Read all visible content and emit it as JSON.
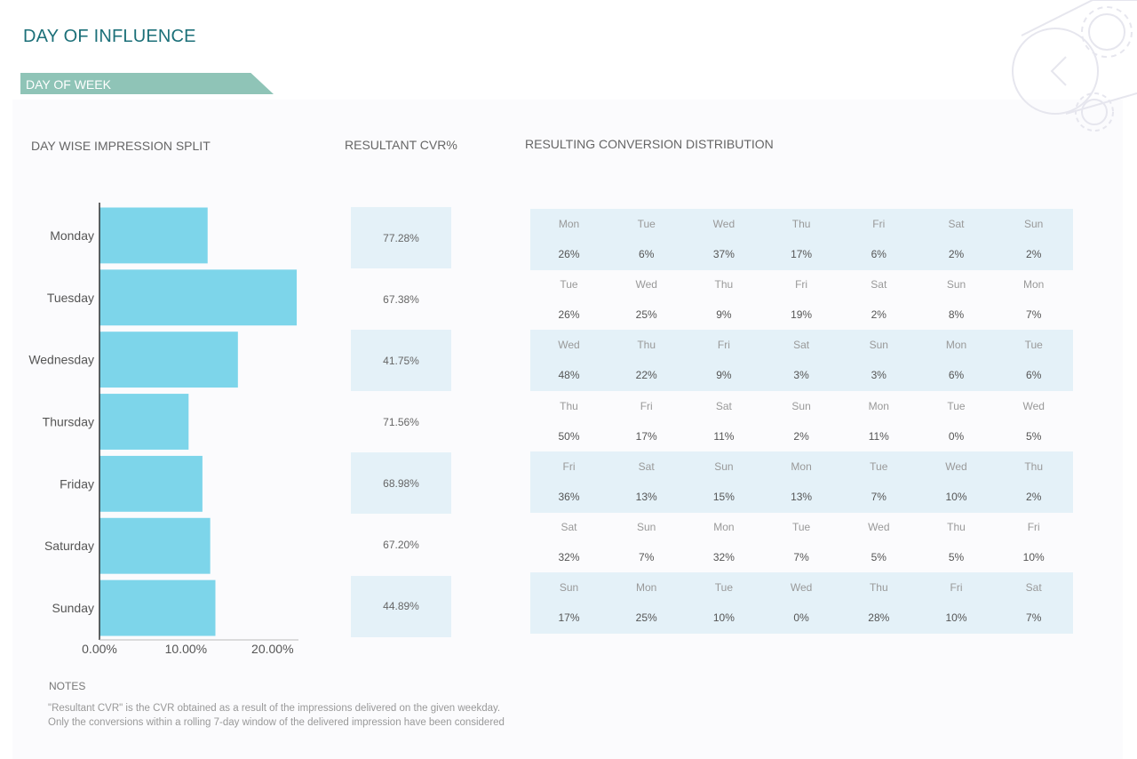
{
  "page": {
    "title": "DAY OF INFLUENCE",
    "banner": "DAY OF WEEK"
  },
  "sections": {
    "impression_split": "DAY WISE IMPRESSION SPLIT",
    "resultant_cvr": "RESULTANT CVR%",
    "conversion_distribution": "RESULTING CONVERSION DISTRIBUTION"
  },
  "colors": {
    "bar": "#7dd5ea",
    "title": "#1c7079",
    "banner": "#8fc4b7",
    "row_shade": "#e4f1f8"
  },
  "chart_data": {
    "type": "bar",
    "orientation": "horizontal",
    "title": "DAY WISE IMPRESSION SPLIT",
    "categories": [
      "Monday",
      "Tuesday",
      "Wednesday",
      "Thursday",
      "Friday",
      "Saturday",
      "Sunday"
    ],
    "values": [
      12.5,
      22.8,
      16.0,
      10.3,
      11.9,
      12.8,
      13.4
    ],
    "unit": "%",
    "xlim": [
      0,
      23
    ],
    "xticks": [
      0,
      10,
      20
    ],
    "xtick_labels": [
      "0.00%",
      "10.00%",
      "20.00%"
    ],
    "xlabel": "",
    "ylabel": "",
    "grid": false,
    "legend": "none"
  },
  "resultant_cvr": [
    {
      "day": "Monday",
      "value": "77.28%"
    },
    {
      "day": "Tuesday",
      "value": "67.38%"
    },
    {
      "day": "Wednesday",
      "value": "41.75%"
    },
    {
      "day": "Thursday",
      "value": "71.56%"
    },
    {
      "day": "Friday",
      "value": "68.98%"
    },
    {
      "day": "Saturday",
      "value": "67.20%"
    },
    {
      "day": "Sunday",
      "value": "44.89%"
    }
  ],
  "conversion_distribution": [
    {
      "days": [
        "Mon",
        "Tue",
        "Wed",
        "Thu",
        "Fri",
        "Sat",
        "Sun"
      ],
      "values": [
        "26%",
        "6%",
        "37%",
        "17%",
        "6%",
        "2%",
        "2%"
      ]
    },
    {
      "days": [
        "Tue",
        "Wed",
        "Thu",
        "Fri",
        "Sat",
        "Sun",
        "Mon"
      ],
      "values": [
        "26%",
        "25%",
        "9%",
        "19%",
        "2%",
        "8%",
        "7%"
      ]
    },
    {
      "days": [
        "Wed",
        "Thu",
        "Fri",
        "Sat",
        "Sun",
        "Mon",
        "Tue"
      ],
      "values": [
        "48%",
        "22%",
        "9%",
        "3%",
        "3%",
        "6%",
        "6%"
      ]
    },
    {
      "days": [
        "Thu",
        "Fri",
        "Sat",
        "Sun",
        "Mon",
        "Tue",
        "Wed"
      ],
      "values": [
        "50%",
        "17%",
        "11%",
        "2%",
        "11%",
        "0%",
        "5%"
      ]
    },
    {
      "days": [
        "Fri",
        "Sat",
        "Sun",
        "Mon",
        "Tue",
        "Wed",
        "Thu"
      ],
      "values": [
        "36%",
        "13%",
        "15%",
        "13%",
        "7%",
        "10%",
        "2%"
      ]
    },
    {
      "days": [
        "Sat",
        "Sun",
        "Mon",
        "Tue",
        "Wed",
        "Thu",
        "Fri"
      ],
      "values": [
        "32%",
        "7%",
        "32%",
        "7%",
        "5%",
        "5%",
        "10%"
      ]
    },
    {
      "days": [
        "Sun",
        "Mon",
        "Tue",
        "Wed",
        "Thu",
        "Fri",
        "Sat"
      ],
      "values": [
        "17%",
        "25%",
        "10%",
        "0%",
        "28%",
        "10%",
        "7%"
      ]
    }
  ],
  "notes": {
    "title": "NOTES",
    "lines": [
      "\"Resultant CVR\" is the CVR obtained as a result of the impressions delivered on the given weekday.",
      "Only the conversions within a rolling 7-day window of the delivered impression have been considered"
    ]
  },
  "icons": {
    "decoration": "gear-chevron-decoration-icon"
  }
}
